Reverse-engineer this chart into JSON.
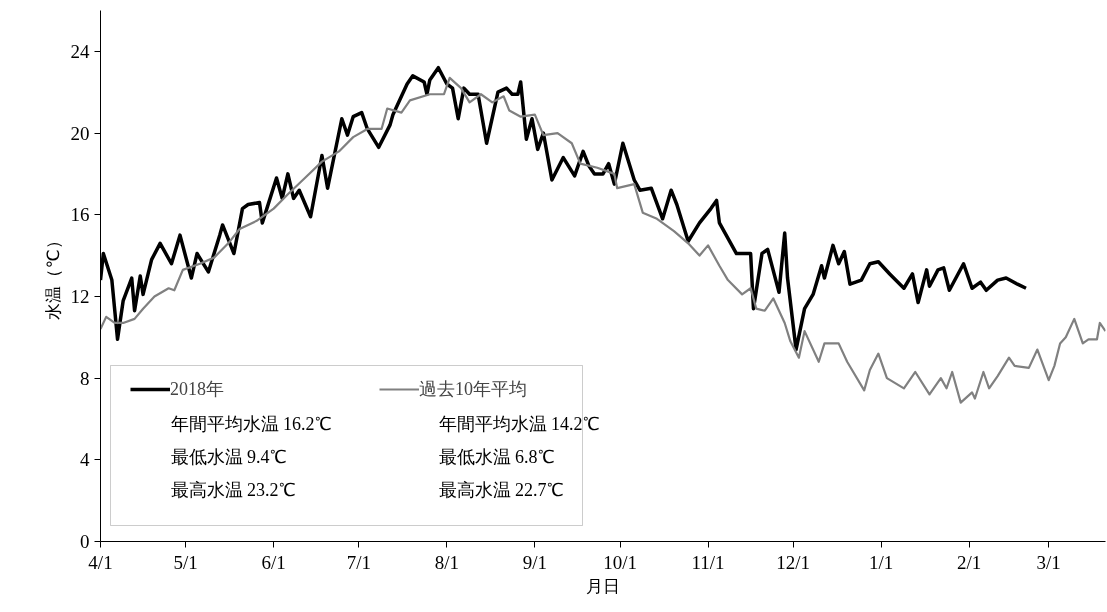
{
  "chart_data": {
    "type": "line",
    "xlabel": "月日",
    "ylabel": "水温（℃）",
    "xlim": [
      "2018-04-01",
      "2019-03-21"
    ],
    "xticks": [
      {
        "value": "2018-04-01",
        "label": "4/1"
      },
      {
        "value": "2018-05-01",
        "label": "5/1"
      },
      {
        "value": "2018-06-01",
        "label": "6/1"
      },
      {
        "value": "2018-07-01",
        "label": "7/1"
      },
      {
        "value": "2018-08-01",
        "label": "8/1"
      },
      {
        "value": "2018-09-01",
        "label": "9/1"
      },
      {
        "value": "2018-10-01",
        "label": "10/1"
      },
      {
        "value": "2018-11-01",
        "label": "11/1"
      },
      {
        "value": "2018-12-01",
        "label": "12/1"
      },
      {
        "value": "2019-01-01",
        "label": "1/1"
      },
      {
        "value": "2019-02-01",
        "label": "2/1"
      },
      {
        "value": "2019-03-01",
        "label": "3/1"
      }
    ],
    "ylim": [
      0,
      26
    ],
    "yticks": [
      0,
      4,
      8,
      12,
      16,
      20,
      24
    ],
    "grid": false,
    "legend": "bottom left",
    "marker": "none",
    "line_style": "solid",
    "annotations": [
      "年間平均水温 16.2℃",
      "年間平均水温 14.2℃",
      "最低水温 9.4℃",
      "最低水温 6.8℃",
      "最高水温 23.2℃",
      "最高水温 22.7℃"
    ],
    "series": [
      {
        "name": "2018年",
        "color": "#000000",
        "x": [
          "2018-04-01",
          "2018-04-02",
          "2018-04-05",
          "2018-04-07",
          "2018-04-09",
          "2018-04-12",
          "2018-04-13",
          "2018-04-15",
          "2018-04-16",
          "2018-04-19",
          "2018-04-22",
          "2018-04-26",
          "2018-04-29",
          "2018-05-03",
          "2018-05-05",
          "2018-05-09",
          "2018-05-13",
          "2018-05-14",
          "2018-05-18",
          "2018-05-21",
          "2018-05-23",
          "2018-05-27",
          "2018-05-28",
          "2018-06-02",
          "2018-06-04",
          "2018-06-06",
          "2018-06-08",
          "2018-06-10",
          "2018-06-14",
          "2018-06-18",
          "2018-06-20",
          "2018-06-25",
          "2018-06-27",
          "2018-06-29",
          "2018-07-02",
          "2018-07-04",
          "2018-07-08",
          "2018-07-12",
          "2018-07-13",
          "2018-07-18",
          "2018-07-20",
          "2018-07-24",
          "2018-07-25",
          "2018-07-26",
          "2018-07-29",
          "2018-08-01",
          "2018-08-03",
          "2018-08-05",
          "2018-08-07",
          "2018-08-09",
          "2018-08-12",
          "2018-08-15",
          "2018-08-19",
          "2018-08-22",
          "2018-08-24",
          "2018-08-26",
          "2018-08-27",
          "2018-08-29",
          "2018-08-31",
          "2018-09-02",
          "2018-09-04",
          "2018-09-07",
          "2018-09-11",
          "2018-09-15",
          "2018-09-18",
          "2018-09-20",
          "2018-09-22",
          "2018-09-25",
          "2018-09-27",
          "2018-09-29",
          "2018-10-02",
          "2018-10-06",
          "2018-10-08",
          "2018-10-12",
          "2018-10-16",
          "2018-10-19",
          "2018-10-21",
          "2018-10-25",
          "2018-10-29",
          "2018-11-02",
          "2018-11-04",
          "2018-11-05",
          "2018-11-11",
          "2018-11-16",
          "2018-11-17",
          "2018-11-20",
          "2018-11-22",
          "2018-11-26",
          "2018-11-28",
          "2018-11-29",
          "2018-12-02",
          "2018-12-05",
          "2018-12-08",
          "2018-12-11",
          "2018-12-12",
          "2018-12-15",
          "2018-12-17",
          "2018-12-19",
          "2018-12-21",
          "2018-12-25",
          "2018-12-28",
          "2018-12-31",
          "2019-01-04",
          "2019-01-09",
          "2019-01-12",
          "2019-01-14",
          "2019-01-17",
          "2019-01-18",
          "2019-01-21",
          "2019-01-23",
          "2019-01-25",
          "2019-01-30",
          "2019-02-02",
          "2019-02-05",
          "2019-02-07",
          "2019-02-11",
          "2019-02-14",
          "2019-02-18",
          "2019-02-21"
        ],
        "values": [
          12.8,
          14.1,
          12.8,
          9.9,
          11.8,
          12.9,
          11.3,
          13.0,
          12.1,
          13.8,
          14.6,
          13.6,
          15.0,
          12.9,
          14.1,
          13.2,
          15.0,
          15.5,
          14.1,
          16.3,
          16.5,
          16.6,
          15.6,
          17.8,
          16.8,
          18.0,
          16.8,
          17.2,
          15.9,
          18.9,
          17.3,
          20.7,
          19.9,
          20.8,
          21.0,
          20.2,
          19.3,
          20.4,
          20.9,
          22.4,
          22.8,
          22.5,
          21.9,
          22.6,
          23.2,
          22.4,
          22.2,
          20.7,
          22.2,
          21.9,
          21.9,
          19.5,
          22.0,
          22.2,
          21.9,
          21.9,
          22.5,
          19.7,
          20.7,
          19.2,
          20.0,
          17.7,
          18.8,
          17.9,
          19.1,
          18.4,
          18.0,
          18.0,
          18.5,
          17.5,
          19.5,
          17.7,
          17.2,
          17.3,
          15.8,
          17.2,
          16.5,
          14.7,
          15.6,
          16.3,
          16.7,
          15.6,
          14.1,
          14.1,
          11.4,
          14.1,
          14.3,
          12.2,
          15.1,
          12.9,
          9.4,
          11.4,
          12.1,
          13.5,
          12.9,
          14.5,
          13.6,
          14.2,
          12.6,
          12.8,
          13.6,
          13.7,
          13.1,
          12.4,
          13.1,
          11.7,
          13.3,
          12.5,
          13.3,
          13.4,
          12.3,
          13.6,
          12.4,
          12.7,
          12.3,
          12.8,
          12.9,
          12.6,
          12.4
        ]
      },
      {
        "name": "過去10年平均",
        "color": "#808080",
        "x": [
          "2018-04-01",
          "2018-04-03",
          "2018-04-06",
          "2018-04-09",
          "2018-04-13",
          "2018-04-16",
          "2018-04-20",
          "2018-04-25",
          "2018-04-27",
          "2018-04-30",
          "2018-05-06",
          "2018-05-11",
          "2018-05-16",
          "2018-05-20",
          "2018-05-26",
          "2018-06-01",
          "2018-06-06",
          "2018-06-12",
          "2018-06-18",
          "2018-06-24",
          "2018-06-29",
          "2018-07-04",
          "2018-07-09",
          "2018-07-11",
          "2018-07-16",
          "2018-07-19",
          "2018-07-26",
          "2018-07-31",
          "2018-08-02",
          "2018-08-06",
          "2018-08-09",
          "2018-08-13",
          "2018-08-17",
          "2018-08-21",
          "2018-08-23",
          "2018-08-27",
          "2018-09-01",
          "2018-09-04",
          "2018-09-09",
          "2018-09-14",
          "2018-09-17",
          "2018-09-23",
          "2018-09-29",
          "2018-09-30",
          "2018-10-06",
          "2018-10-09",
          "2018-10-14",
          "2018-10-20",
          "2018-10-25",
          "2018-10-29",
          "2018-11-01",
          "2018-11-05",
          "2018-11-08",
          "2018-11-13",
          "2018-11-16",
          "2018-11-18",
          "2018-11-21",
          "2018-11-24",
          "2018-11-28",
          "2018-11-30",
          "2018-12-03",
          "2018-12-05",
          "2018-12-10",
          "2018-12-12",
          "2018-12-17",
          "2018-12-20",
          "2018-12-26",
          "2018-12-28",
          "2018-12-31",
          "2019-01-03",
          "2019-01-09",
          "2019-01-13",
          "2019-01-18",
          "2019-01-22",
          "2019-01-24",
          "2019-01-26",
          "2019-01-29",
          "2019-02-02",
          "2019-02-03",
          "2019-02-06",
          "2019-02-08",
          "2019-02-11",
          "2019-02-15",
          "2019-02-17",
          "2019-02-22",
          "2019-02-25",
          "2019-03-01",
          "2019-03-03",
          "2019-03-05",
          "2019-03-07",
          "2019-03-10",
          "2019-03-13",
          "2019-03-15",
          "2019-03-18",
          "2019-03-19",
          "2019-03-21"
        ],
        "values": [
          10.4,
          11.0,
          10.7,
          10.7,
          10.9,
          11.4,
          12.0,
          12.4,
          12.3,
          13.3,
          13.6,
          13.9,
          14.6,
          15.3,
          15.7,
          16.3,
          17.0,
          17.8,
          18.6,
          19.1,
          19.8,
          20.2,
          20.2,
          21.2,
          21.0,
          21.6,
          21.9,
          21.9,
          22.7,
          22.2,
          21.5,
          21.9,
          21.5,
          21.8,
          21.1,
          20.8,
          20.9,
          19.9,
          20.0,
          19.5,
          18.5,
          18.3,
          18.0,
          17.3,
          17.5,
          16.1,
          15.8,
          15.2,
          14.6,
          14.0,
          14.5,
          13.5,
          12.8,
          12.1,
          12.4,
          11.4,
          11.3,
          11.9,
          10.7,
          9.8,
          9.0,
          10.3,
          8.8,
          9.7,
          9.7,
          8.8,
          7.4,
          8.4,
          9.2,
          8.0,
          7.5,
          8.3,
          7.2,
          8.0,
          7.5,
          8.3,
          6.8,
          7.3,
          7.0,
          8.3,
          7.5,
          8.1,
          9.0,
          8.6,
          8.5,
          9.4,
          7.9,
          8.6,
          9.7,
          10.0,
          10.9,
          9.7,
          9.9,
          9.9,
          10.7,
          10.3
        ]
      }
    ]
  }
}
